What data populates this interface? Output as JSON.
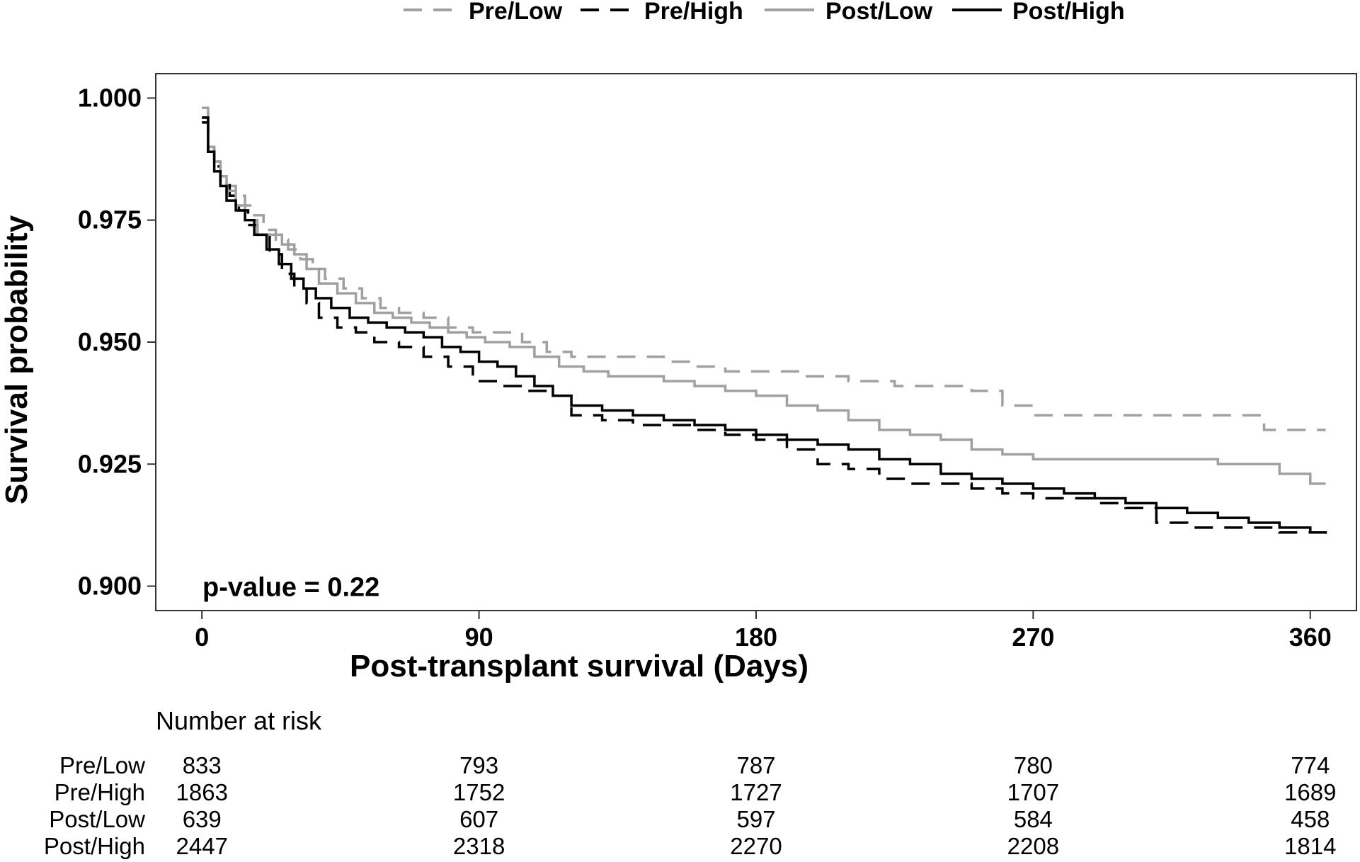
{
  "chart_data": {
    "type": "line",
    "subtype": "kaplan-meier step",
    "title": "",
    "xlabel": "Post-transplant survival (Days)",
    "ylabel": "Survival probability",
    "xlim": [
      -15,
      375
    ],
    "ylim": [
      0.895,
      1.005
    ],
    "x_ticks": [
      0,
      90,
      180,
      270,
      360
    ],
    "y_ticks": [
      0.9,
      0.925,
      0.95,
      0.975,
      1.0
    ],
    "y_tick_labels": [
      "0.900",
      "0.925",
      "0.950",
      "0.975",
      "1.000"
    ],
    "grid": false,
    "legend_position": "top",
    "annotation": "p-value = 0.22",
    "series": [
      {
        "name": "Pre/Low",
        "color": "#a0a0a0",
        "dash": "dashed",
        "x": [
          0,
          2,
          4,
          6,
          8,
          11,
          14,
          17,
          20,
          24,
          28,
          32,
          36,
          40,
          46,
          52,
          58,
          64,
          72,
          80,
          88,
          96,
          104,
          112,
          120,
          130,
          140,
          150,
          160,
          170,
          180,
          195,
          210,
          225,
          240,
          250,
          260,
          270,
          285,
          300,
          315,
          330,
          345,
          360,
          365
        ],
        "y": [
          0.996,
          0.99,
          0.987,
          0.984,
          0.982,
          0.98,
          0.978,
          0.976,
          0.973,
          0.971,
          0.969,
          0.967,
          0.965,
          0.963,
          0.961,
          0.959,
          0.957,
          0.956,
          0.955,
          0.953,
          0.952,
          0.952,
          0.95,
          0.948,
          0.947,
          0.947,
          0.947,
          0.946,
          0.945,
          0.944,
          0.944,
          0.943,
          0.942,
          0.941,
          0.941,
          0.94,
          0.937,
          0.935,
          0.935,
          0.935,
          0.935,
          0.935,
          0.932,
          0.932,
          0.932
        ]
      },
      {
        "name": "Pre/High",
        "color": "#000000",
        "dash": "dashed",
        "x": [
          0,
          2,
          4,
          6,
          9,
          12,
          15,
          18,
          22,
          26,
          30,
          34,
          38,
          44,
          50,
          56,
          64,
          72,
          80,
          88,
          96,
          104,
          112,
          120,
          130,
          140,
          150,
          160,
          170,
          180,
          190,
          200,
          210,
          220,
          230,
          240,
          250,
          260,
          270,
          280,
          290,
          300,
          310,
          320,
          330,
          340,
          350,
          360,
          365
        ],
        "y": [
          0.995,
          0.989,
          0.986,
          0.983,
          0.98,
          0.977,
          0.974,
          0.972,
          0.968,
          0.964,
          0.961,
          0.958,
          0.955,
          0.953,
          0.952,
          0.95,
          0.949,
          0.947,
          0.945,
          0.942,
          0.941,
          0.94,
          0.939,
          0.935,
          0.934,
          0.933,
          0.933,
          0.932,
          0.931,
          0.93,
          0.928,
          0.925,
          0.924,
          0.922,
          0.921,
          0.921,
          0.92,
          0.919,
          0.918,
          0.918,
          0.917,
          0.916,
          0.913,
          0.912,
          0.912,
          0.912,
          0.911,
          0.911,
          0.91
        ]
      },
      {
        "name": "Post/Low",
        "color": "#a0a0a0",
        "dash": "solid",
        "x": [
          0,
          2,
          4,
          6,
          8,
          11,
          14,
          18,
          22,
          26,
          30,
          34,
          38,
          44,
          50,
          56,
          62,
          68,
          74,
          80,
          86,
          92,
          100,
          108,
          116,
          124,
          132,
          140,
          150,
          160,
          170,
          180,
          190,
          200,
          210,
          220,
          230,
          240,
          250,
          260,
          270,
          285,
          300,
          315,
          330,
          340,
          350,
          360,
          365
        ],
        "y": [
          0.998,
          0.99,
          0.987,
          0.984,
          0.981,
          0.978,
          0.975,
          0.972,
          0.972,
          0.97,
          0.968,
          0.965,
          0.962,
          0.96,
          0.958,
          0.956,
          0.955,
          0.954,
          0.953,
          0.952,
          0.951,
          0.95,
          0.949,
          0.947,
          0.945,
          0.944,
          0.943,
          0.943,
          0.942,
          0.941,
          0.94,
          0.939,
          0.937,
          0.936,
          0.934,
          0.932,
          0.931,
          0.93,
          0.928,
          0.927,
          0.926,
          0.926,
          0.926,
          0.926,
          0.925,
          0.925,
          0.923,
          0.921,
          0.921
        ]
      },
      {
        "name": "Post/High",
        "color": "#000000",
        "dash": "solid",
        "x": [
          0,
          2,
          4,
          6,
          8,
          11,
          14,
          17,
          21,
          25,
          29,
          33,
          37,
          42,
          48,
          54,
          60,
          66,
          72,
          78,
          84,
          90,
          96,
          102,
          108,
          114,
          120,
          130,
          140,
          150,
          160,
          170,
          180,
          190,
          200,
          210,
          220,
          230,
          240,
          250,
          260,
          270,
          280,
          290,
          300,
          310,
          320,
          330,
          340,
          350,
          360,
          365
        ],
        "y": [
          0.996,
          0.989,
          0.985,
          0.982,
          0.979,
          0.977,
          0.975,
          0.972,
          0.969,
          0.966,
          0.963,
          0.961,
          0.959,
          0.957,
          0.955,
          0.954,
          0.953,
          0.952,
          0.951,
          0.949,
          0.948,
          0.946,
          0.945,
          0.943,
          0.941,
          0.939,
          0.937,
          0.936,
          0.935,
          0.934,
          0.933,
          0.932,
          0.931,
          0.93,
          0.929,
          0.928,
          0.926,
          0.925,
          0.923,
          0.922,
          0.921,
          0.92,
          0.919,
          0.918,
          0.917,
          0.916,
          0.915,
          0.914,
          0.913,
          0.912,
          0.911,
          0.911
        ]
      }
    ],
    "risk_table": {
      "title": "Number at risk",
      "times": [
        0,
        90,
        180,
        270,
        360
      ],
      "rows": [
        {
          "label": "Pre/Low",
          "values": [
            833,
            793,
            787,
            780,
            774
          ]
        },
        {
          "label": "Pre/High",
          "values": [
            1863,
            1752,
            1727,
            1707,
            1689
          ]
        },
        {
          "label": "Post/Low",
          "values": [
            639,
            607,
            597,
            584,
            458
          ]
        },
        {
          "label": "Post/High",
          "values": [
            2447,
            2318,
            2270,
            2208,
            1814
          ]
        }
      ]
    }
  }
}
